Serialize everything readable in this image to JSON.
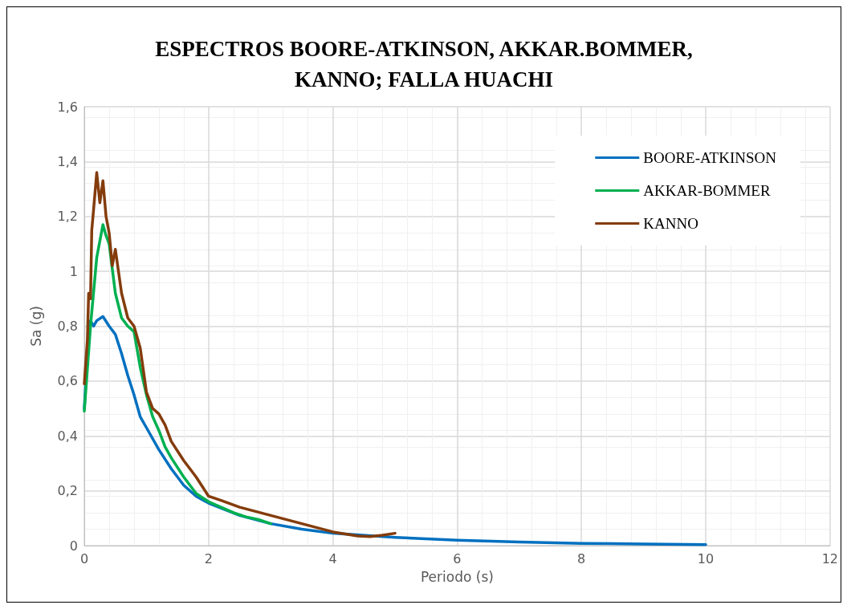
{
  "chart_data": {
    "type": "line",
    "title": "ESPECTROS BOORE-ATKINSON, AKKAR.BOMMER,\nKANNO; FALLA HUACHI",
    "xlabel": "Periodo (s)",
    "ylabel": "Sa (g)",
    "xlim": [
      0,
      12
    ],
    "xticks": [
      0,
      2,
      4,
      6,
      8,
      10,
      12
    ],
    "ylim": [
      0,
      1.6
    ],
    "yticks": [
      0,
      {
        "value": 0.2,
        "label": "0,2"
      },
      {
        "value": 0.4,
        "label": "0,4"
      },
      {
        "value": 0.6,
        "label": "0,6"
      },
      {
        "value": 0.8,
        "label": "0,8"
      },
      1,
      {
        "value": 1.2,
        "label": "1,2"
      },
      {
        "value": 1.4,
        "label": "1,4"
      },
      {
        "value": 1.6,
        "label": "1,6"
      }
    ],
    "grid": true,
    "legend": "top right",
    "marker": "none",
    "line_style": "solid",
    "series": [
      {
        "name": "BOORE-ATKINSON",
        "color": "#0070c0",
        "x": [
          0,
          0.05,
          0.1,
          0.15,
          0.2,
          0.3,
          0.4,
          0.5,
          0.6,
          0.7,
          0.8,
          0.9,
          1.0,
          1.2,
          1.4,
          1.6,
          1.8,
          2.0,
          2.5,
          3.0,
          3.5,
          4.0,
          5.0,
          6.0,
          7.0,
          8.0,
          9.0,
          10.0
        ],
        "values": [
          0.5,
          0.7,
          0.82,
          0.8,
          0.82,
          0.835,
          0.8,
          0.77,
          0.7,
          0.62,
          0.55,
          0.47,
          0.43,
          0.35,
          0.28,
          0.22,
          0.18,
          0.155,
          0.11,
          0.08,
          0.06,
          0.045,
          0.03,
          0.02,
          0.013,
          0.008,
          0.006,
          0.004
        ]
      },
      {
        "name": "AKKAR-BOMMER",
        "color": "#00b050",
        "x": [
          0,
          0.1,
          0.2,
          0.3,
          0.35,
          0.4,
          0.5,
          0.6,
          0.7,
          0.8,
          0.9,
          1.0,
          1.1,
          1.2,
          1.3,
          1.4,
          1.6,
          1.8,
          2.0,
          2.2,
          2.4,
          2.6,
          2.8,
          3.0
        ],
        "values": [
          0.49,
          0.8,
          1.05,
          1.17,
          1.13,
          1.1,
          0.92,
          0.83,
          0.8,
          0.78,
          0.65,
          0.55,
          0.47,
          0.42,
          0.36,
          0.32,
          0.25,
          0.19,
          0.16,
          0.14,
          0.12,
          0.105,
          0.095,
          0.08
        ]
      },
      {
        "name": "KANNO",
        "color": "#843c0c",
        "x": [
          0,
          0.05,
          0.07,
          0.1,
          0.12,
          0.14,
          0.2,
          0.25,
          0.3,
          0.35,
          0.4,
          0.45,
          0.5,
          0.55,
          0.6,
          0.7,
          0.8,
          0.9,
          1.0,
          1.1,
          1.2,
          1.3,
          1.4,
          1.6,
          1.8,
          2.0,
          2.2,
          2.5,
          3.0,
          3.5,
          4.0,
          4.4,
          4.6,
          4.8,
          5.0
        ],
        "values": [
          0.59,
          0.75,
          0.92,
          0.9,
          1.15,
          1.2,
          1.36,
          1.25,
          1.33,
          1.2,
          1.14,
          1.02,
          1.08,
          1.0,
          0.92,
          0.83,
          0.8,
          0.72,
          0.56,
          0.5,
          0.48,
          0.44,
          0.38,
          0.31,
          0.25,
          0.18,
          0.165,
          0.14,
          0.11,
          0.08,
          0.05,
          0.035,
          0.033,
          0.038,
          0.045
        ]
      }
    ]
  }
}
